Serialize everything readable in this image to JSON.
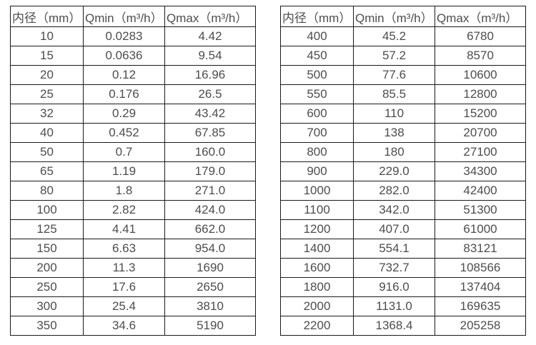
{
  "colors": {
    "background": "#ffffff",
    "text": "#4d4d4d",
    "border": "#1a1a1a"
  },
  "tables": [
    {
      "id": "flow-range-table-small-diameters",
      "headers": [
        "内径（mm）",
        "Qmin（m³/h）",
        "Qmax（m³/h）"
      ],
      "rows": [
        [
          "10",
          "0.0283",
          "4.42"
        ],
        [
          "15",
          "0.0636",
          "9.54"
        ],
        [
          "20",
          "0.12",
          "16.96"
        ],
        [
          "25",
          "0.176",
          "26.5"
        ],
        [
          "32",
          "0.29",
          "43.42"
        ],
        [
          "40",
          "0.452",
          "67.85"
        ],
        [
          "50",
          "0.7",
          "160.0"
        ],
        [
          "65",
          "1.19",
          "179.0"
        ],
        [
          "80",
          "1.8",
          "271.0"
        ],
        [
          "100",
          "2.82",
          "424.0"
        ],
        [
          "125",
          "4.41",
          "662.0"
        ],
        [
          "150",
          "6.63",
          "954.0"
        ],
        [
          "200",
          "11.3",
          "1690"
        ],
        [
          "250",
          "17.6",
          "2650"
        ],
        [
          "300",
          "25.4",
          "3810"
        ],
        [
          "350",
          "34.6",
          "5190"
        ]
      ]
    },
    {
      "id": "flow-range-table-large-diameters",
      "headers": [
        "内径（mm）",
        "Qmin（m³/h）",
        "Qmax（m³/h）"
      ],
      "rows": [
        [
          "400",
          "45.2",
          "6780"
        ],
        [
          "450",
          "57.2",
          "8570"
        ],
        [
          "500",
          "77.6",
          "10600"
        ],
        [
          "550",
          "85.5",
          "12800"
        ],
        [
          "600",
          "110",
          "15200"
        ],
        [
          "700",
          "138",
          "20700"
        ],
        [
          "800",
          "180",
          "27100"
        ],
        [
          "900",
          "229.0",
          "34300"
        ],
        [
          "1000",
          "282.0",
          "42400"
        ],
        [
          "1100",
          "342.0",
          "51300"
        ],
        [
          "1200",
          "407.0",
          "61000"
        ],
        [
          "1400",
          "554.1",
          "83121"
        ],
        [
          "1600",
          "732.7",
          "108566"
        ],
        [
          "1800",
          "916.0",
          "137404"
        ],
        [
          "2000",
          "1131.0",
          "169635"
        ],
        [
          "2200",
          "1368.4",
          "205258"
        ]
      ]
    }
  ]
}
